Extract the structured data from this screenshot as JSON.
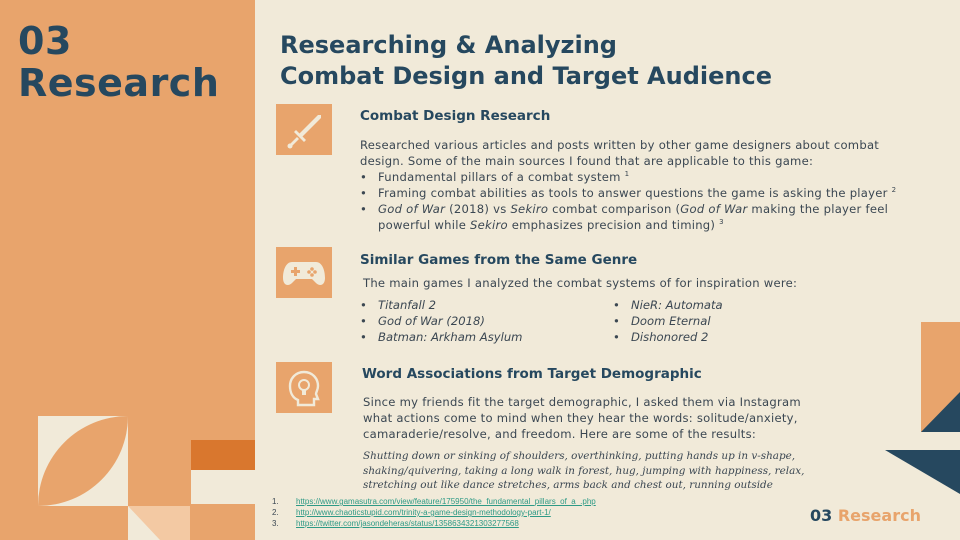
{
  "sidebar": {
    "section_number": "03",
    "section_name": "Research"
  },
  "heading": {
    "line1": "Researching & Analyzing",
    "line2": "Combat Design and Target Audience"
  },
  "combat_section": {
    "icon": "sword-icon",
    "title": "Combat Design Research",
    "intro_line1": "Researched  various articles and posts written by other game designers  about combat",
    "intro_line2": "design. Some of the main sources I found that are applicable to this game:",
    "bullet1": "Fundamental pillars of a combat system ",
    "bullet1_ref": "1",
    "bullet2": "Framing combat abilities as tools to answer questions the game is asking the player ",
    "bullet2_ref": "2",
    "bullet3_game1": "God of War",
    "bullet3_a": " (2018) vs ",
    "bullet3_game2": "Sekiro",
    "bullet3_b": " combat comparison  (",
    "bullet3_game3": "God of War",
    "bullet3_c": " making the player feel",
    "bullet3_line2_a": "powerful while ",
    "bullet3_game4": "Sekiro",
    "bullet3_line2_b": " emphasizes  precision and timing) ",
    "bullet3_ref": "3"
  },
  "games_section": {
    "icon": "gamepad-icon",
    "title": "Similar Games from the Same Genre",
    "intro": "The main games I analyzed the combat systems of for inspiration were:",
    "left_games": [
      "Titanfall 2",
      "God of War (2018)",
      "Batman: Arkham Asylum"
    ],
    "right_games": [
      "NieR: Automata",
      "Doom Eternal",
      "Dishonored 2"
    ]
  },
  "words_section": {
    "icon": "lightbulb-head-icon",
    "title": "Word Associations from Target Demographic",
    "line1": "Since my friends fit the target demographic,  I asked them via Instagram",
    "line2": "what actions come to mind when they hear the words: solitude/anxiety,",
    "line3": "camaraderie/resolve,  and freedom.  Here are some of the results:",
    "quote_line1": "Shutting down or sinking of shoulders, overthinking, putting hands up in v-shape,",
    "quote_line2": "shaking/quivering, taking a long walk in forest, hug, jumping with happiness, relax,",
    "quote_line3": "stretching out like dance stretches, arms back and chest out, running outside"
  },
  "footnotes": [
    {
      "num": "1.",
      "url": "https://www.gamasutra.com/view/feature/175950/the_fundamental_pillars_of_a_.php"
    },
    {
      "num": "2.",
      "url": "http://www.chaoticstupid.com/trinity-a-game-design-methodology-part-1/"
    },
    {
      "num": "3.",
      "url": "https://twitter.com/jasondeheras/status/1358634321303277568"
    }
  ],
  "footer": {
    "number": "03",
    "label": "Research"
  },
  "colors": {
    "navy": "#26485f",
    "orange": "#e8a46c",
    "dark_orange": "#d9772e",
    "peach": "#f3c9a3",
    "cream": "#f1ead9"
  }
}
